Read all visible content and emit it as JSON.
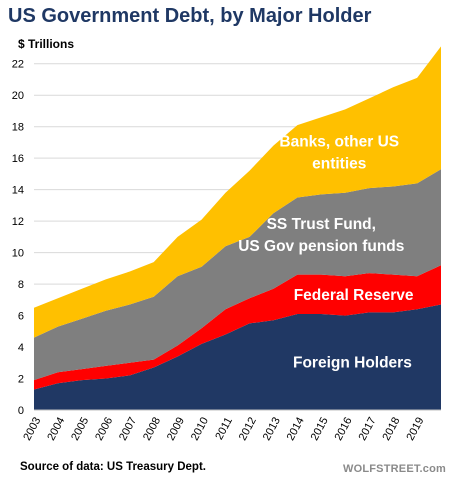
{
  "chart_data": {
    "type": "area",
    "stacked": true,
    "title": "US Government Debt, by Major Holder",
    "ylabel": "$ Trillions",
    "ylim": [
      0,
      23
    ],
    "yticks": [
      0,
      2,
      4,
      6,
      8,
      10,
      12,
      14,
      16,
      18,
      20,
      22
    ],
    "x": [
      2003,
      2004,
      2005,
      2006,
      2007,
      2008,
      2009,
      2010,
      2011,
      2012,
      2013,
      2014,
      2015,
      2016,
      2017,
      2018,
      2019,
      2020
    ],
    "xtick_labels": [
      "2003",
      "2004",
      "2005",
      "2006",
      "2007",
      "2008",
      "2009",
      "2010",
      "2011",
      "2012",
      "2013",
      "2014",
      "2015",
      "2016",
      "2017",
      "2018",
      "2019"
    ],
    "grid": "horizontal",
    "legend": "labels inside areas",
    "series": [
      {
        "name": "Foreign Holders",
        "color": "#203864",
        "values": [
          1.3,
          1.7,
          1.9,
          2.0,
          2.2,
          2.7,
          3.4,
          4.2,
          4.8,
          5.5,
          5.7,
          6.1,
          6.1,
          6.0,
          6.2,
          6.2,
          6.4,
          6.7
        ]
      },
      {
        "name": "Federal Reserve",
        "color": "#ff0000",
        "values": [
          0.6,
          0.7,
          0.7,
          0.8,
          0.8,
          0.5,
          0.7,
          1.0,
          1.6,
          1.6,
          2.0,
          2.5,
          2.5,
          2.5,
          2.5,
          2.4,
          2.1,
          2.5
        ]
      },
      {
        "name": "SS Trust Fund, US Gov pension funds",
        "color": "#7f7f7f",
        "values": [
          2.7,
          2.9,
          3.2,
          3.5,
          3.7,
          4.0,
          4.4,
          3.9,
          4.0,
          3.9,
          4.8,
          4.9,
          5.1,
          5.3,
          5.4,
          5.6,
          5.9,
          6.1
        ]
      },
      {
        "name": "Banks, other US entities",
        "color": "#ffc000",
        "values": [
          1.9,
          1.8,
          1.9,
          2.0,
          2.1,
          2.2,
          2.5,
          3.0,
          3.4,
          4.2,
          4.3,
          4.6,
          4.9,
          5.3,
          5.7,
          6.3,
          6.7,
          7.8
        ]
      }
    ],
    "annotations": [
      {
        "lines": [
          "Banks, other US",
          "entities"
        ],
        "series": "Banks, other US entities"
      },
      {
        "lines": [
          "SS Trust Fund,",
          "US Gov pension funds"
        ],
        "series": "SS Trust Fund, US Gov pension funds"
      },
      {
        "lines": [
          "Federal Reserve"
        ],
        "series": "Federal Reserve"
      },
      {
        "lines": [
          "Foreign Holders"
        ],
        "series": "Foreign Holders"
      }
    ]
  },
  "footer": {
    "source": "Source of data: US Treasury Dept.",
    "watermark": "WOLFSTREET.com"
  }
}
